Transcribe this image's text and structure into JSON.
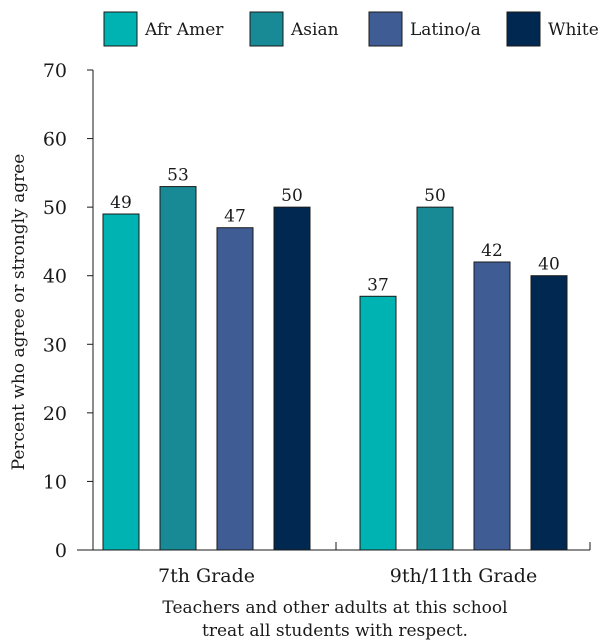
{
  "chart_data": {
    "type": "bar",
    "title": "",
    "xlabel": "Teachers and other adults at this school treat all students with respect.",
    "xlabel_lines": [
      "Teachers and other adults at this school",
      "treat all students with respect."
    ],
    "ylabel": "Percent who agree or strongly agree",
    "ylim": [
      0,
      70
    ],
    "yticks": [
      0,
      10,
      20,
      30,
      40,
      50,
      60,
      70
    ],
    "grid": false,
    "legend_position": "top",
    "categories": [
      "7th Grade",
      "9th/11th Grade"
    ],
    "series": [
      {
        "name": "Afr Amer",
        "color": "#00b3b3",
        "values": [
          49,
          37
        ]
      },
      {
        "name": "Asian",
        "color": "#178a96",
        "values": [
          53,
          50
        ]
      },
      {
        "name": "Latino/a",
        "color": "#3f5c94",
        "values": [
          47,
          42
        ]
      },
      {
        "name": "White",
        "color": "#002850",
        "values": [
          50,
          40
        ]
      }
    ]
  }
}
